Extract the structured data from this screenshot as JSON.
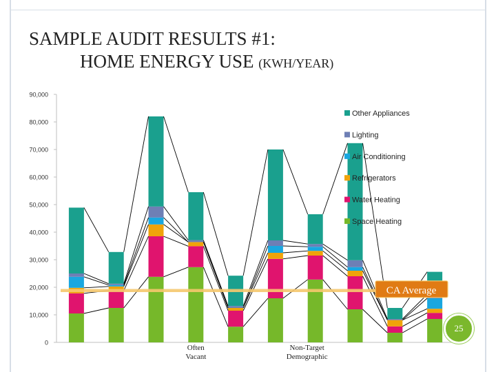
{
  "slide": {
    "title_line1": "SAMPLE AUDIT RESULTS #1:",
    "title_line2": "HOME ENERGY USE",
    "title_unit": "(KWH/YEAR)",
    "page_number": "25"
  },
  "chart_data": {
    "type": "bar",
    "stacked": true,
    "title": "",
    "xlabel": "",
    "ylabel": "",
    "ylim": [
      0,
      90000
    ],
    "yticks": [
      0,
      10000,
      20000,
      30000,
      40000,
      50000,
      60000,
      70000,
      80000,
      90000
    ],
    "ytick_labels": [
      "0",
      "10,000",
      "20,000",
      "30,000",
      "40,000",
      "50,000",
      "60,000",
      "70,000",
      "80,000",
      "90,000"
    ],
    "grid": false,
    "legend_position": "right",
    "categories": [
      "",
      "",
      "",
      "",
      "",
      "",
      "",
      "",
      "",
      ""
    ],
    "category_annotations": [
      {
        "index": 3,
        "text": "Often Vacant"
      },
      {
        "index": 6,
        "text": "Non-Target Demographic"
      }
    ],
    "series": [
      {
        "name": "Space Heating",
        "color": "#76b82a",
        "values": [
          10500,
          12500,
          23800,
          27300,
          5700,
          16000,
          22800,
          12000,
          3500,
          8500
        ]
      },
      {
        "name": "Water Heating",
        "color": "#e0146e",
        "values": [
          7300,
          6300,
          14700,
          7600,
          5800,
          14300,
          8700,
          12000,
          2300,
          2200
        ]
      },
      {
        "name": "Refrigerators",
        "color": "#f0a30a",
        "values": [
          2000,
          1500,
          4300,
          1500,
          1000,
          2200,
          1700,
          2000,
          2300,
          1500
        ]
      },
      {
        "name": "Air Conditioning",
        "color": "#1aa7df",
        "values": [
          4000,
          500,
          2500,
          0,
          0,
          2500,
          1500,
          1300,
          0,
          3800
        ]
      },
      {
        "name": "Lighting",
        "color": "#6e7fb5",
        "values": [
          1200,
          500,
          4000,
          700,
          700,
          2000,
          1000,
          2500,
          400,
          1400
        ]
      },
      {
        "name": "Other Appliances",
        "color": "#1aa08e",
        "values": [
          23900,
          11500,
          32700,
          17400,
          11000,
          33000,
          10800,
          42500,
          4000,
          8200
        ]
      }
    ],
    "reference_line": {
      "label": "CA Average",
      "value": 18800,
      "color": "#f6c86e"
    }
  }
}
